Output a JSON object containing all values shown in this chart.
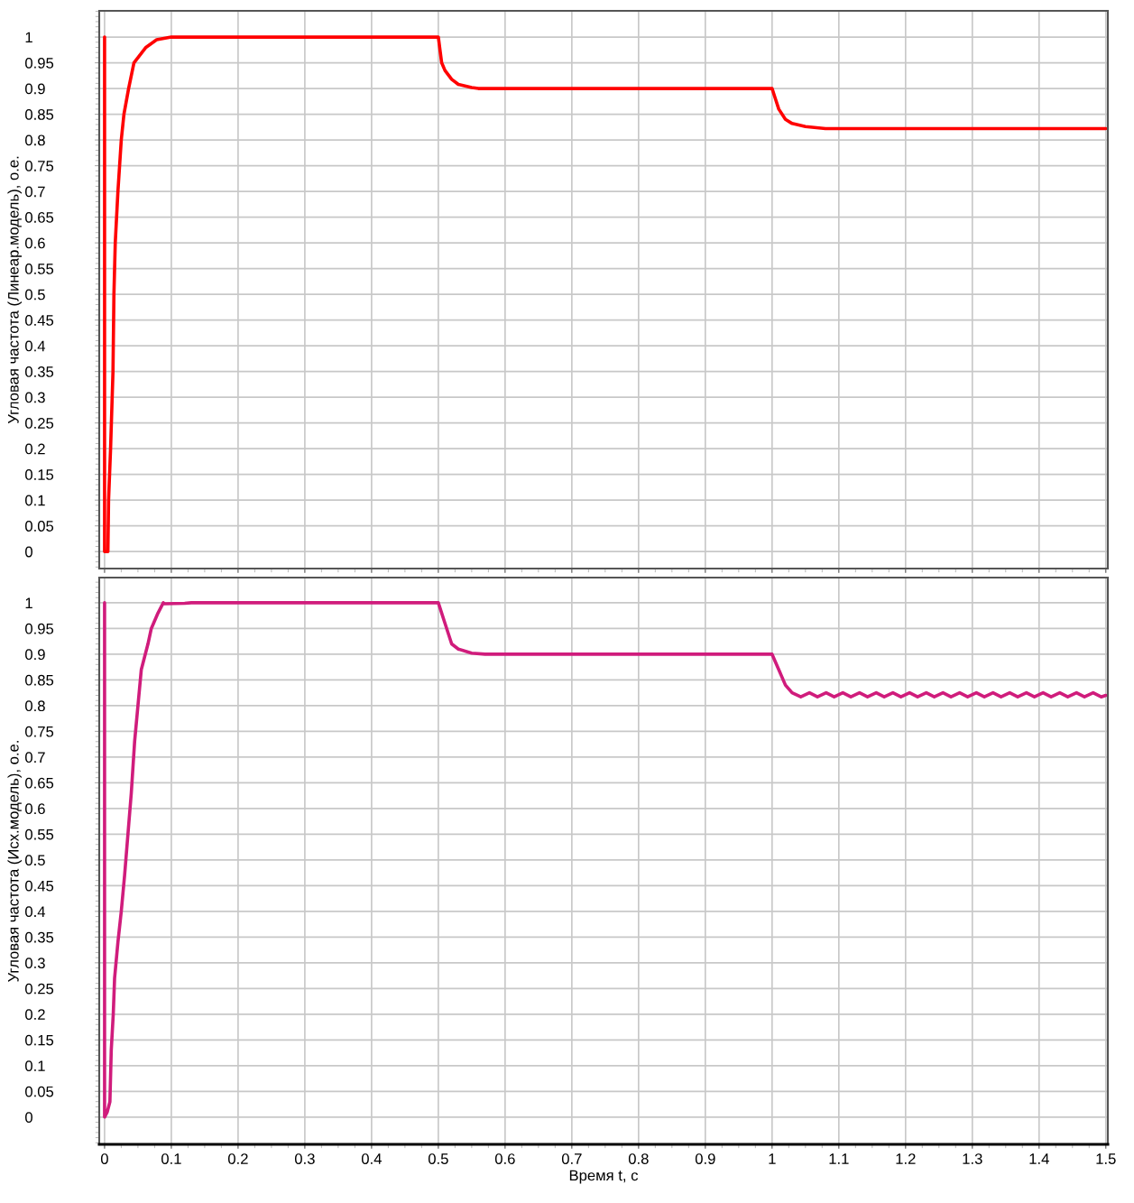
{
  "chart_data": [
    {
      "type": "line",
      "ylabel": "Угловая частота (Линеар.модель), о.е.",
      "tick_labels": "y",
      "grid": true,
      "line_style": "solid",
      "xlim": [
        -0.008,
        1.503
      ],
      "ylim": [
        -0.033,
        1.051
      ],
      "xticks": [
        0,
        0.1,
        0.2,
        0.3,
        0.4,
        0.5,
        0.6,
        0.7,
        0.8,
        0.9,
        1,
        1.1,
        1.2,
        1.3,
        1.4,
        1.5
      ],
      "yticks": [
        0,
        0.05,
        0.1,
        0.15,
        0.2,
        0.25,
        0.3,
        0.35,
        0.4,
        0.45,
        0.5,
        0.55,
        0.6,
        0.65,
        0.7,
        0.75,
        0.8,
        0.85,
        0.9,
        0.95,
        1
      ],
      "series": [
        {
          "color": "#ff0000",
          "x": [
            0,
            0,
            0.005,
            0.006,
            0.009,
            0.0126,
            0.014,
            0.016,
            0.02,
            0.025,
            0.029,
            0.036,
            0.044,
            0.062,
            0.078,
            0.1,
            0.5,
            0.503,
            0.505,
            0.51,
            0.52,
            0.53,
            0.55,
            0.56,
            1.0,
            1.005,
            1.01,
            1.02,
            1.03,
            1.05,
            1.08,
            1.5
          ],
          "values": [
            1,
            0,
            0,
            0.1,
            0.2,
            0.35,
            0.5,
            0.6,
            0.7,
            0.8,
            0.85,
            0.9,
            0.95,
            0.98,
            0.995,
            1,
            1,
            0.97,
            0.95,
            0.935,
            0.918,
            0.908,
            0.902,
            0.9,
            0.9,
            0.88,
            0.86,
            0.84,
            0.832,
            0.826,
            0.822,
            0.822
          ]
        }
      ]
    },
    {
      "type": "line",
      "ylabel": "Угловая частота (Исх.модель), о.е.",
      "xlabel": "Время t, с",
      "grid": true,
      "line_style": "solid",
      "xlim": [
        -0.008,
        1.503
      ],
      "ylim": [
        -0.053,
        1.049
      ],
      "xticks": [
        0,
        0.1,
        0.2,
        0.3,
        0.4,
        0.5,
        0.6,
        0.7,
        0.8,
        0.9,
        1,
        1.1,
        1.2,
        1.3,
        1.4,
        1.5
      ],
      "yticks": [
        0,
        0.05,
        0.1,
        0.15,
        0.2,
        0.25,
        0.3,
        0.35,
        0.4,
        0.45,
        0.5,
        0.55,
        0.6,
        0.65,
        0.7,
        0.75,
        0.8,
        0.85,
        0.9,
        0.95,
        1
      ],
      "series": [
        {
          "color": "#d01c7c",
          "x": [
            0,
            0,
            0.004,
            0.008,
            0.01,
            0.013,
            0.015,
            0.02,
            0.025,
            0.03,
            0.035,
            0.04,
            0.045,
            0.05,
            0.055,
            0.065,
            0.07,
            0.08,
            0.088,
            0.09,
            0.12,
            0.13,
            0.5,
            0.51,
            0.52,
            0.53,
            0.55,
            0.57,
            1.0,
            1.01,
            1.02,
            1.03,
            1.043,
            1.056,
            1.068,
            1.081,
            1.093,
            1.106,
            1.118,
            1.131,
            1.143,
            1.156,
            1.168,
            1.181,
            1.193,
            1.206,
            1.218,
            1.231,
            1.243,
            1.256,
            1.268,
            1.281,
            1.293,
            1.306,
            1.318,
            1.331,
            1.343,
            1.356,
            1.368,
            1.381,
            1.393,
            1.406,
            1.418,
            1.431,
            1.443,
            1.456,
            1.468,
            1.481,
            1.493,
            1.5
          ],
          "values": [
            1,
            0,
            0.01,
            0.03,
            0.13,
            0.2,
            0.27,
            0.34,
            0.4,
            0.47,
            0.55,
            0.63,
            0.73,
            0.8,
            0.87,
            0.92,
            0.95,
            0.98,
            1,
            0.998,
            0.999,
            1,
            1,
            0.96,
            0.92,
            0.91,
            0.902,
            0.9,
            0.9,
            0.87,
            0.84,
            0.825,
            0.817,
            0.825,
            0.817,
            0.825,
            0.817,
            0.825,
            0.817,
            0.825,
            0.817,
            0.825,
            0.817,
            0.825,
            0.817,
            0.825,
            0.817,
            0.825,
            0.817,
            0.825,
            0.817,
            0.825,
            0.817,
            0.825,
            0.817,
            0.825,
            0.817,
            0.825,
            0.817,
            0.825,
            0.817,
            0.825,
            0.817,
            0.825,
            0.817,
            0.825,
            0.817,
            0.825,
            0.817,
            0.82
          ]
        }
      ]
    }
  ]
}
